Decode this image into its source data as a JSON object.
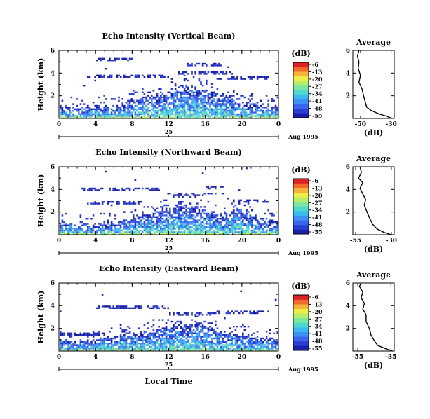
{
  "figure": {
    "x_axis_title": "Local Time",
    "date_label": "Aug 1995",
    "day_label": "25",
    "colorbar_unit": "(dB)",
    "avg_title": "Average",
    "avg_xlabel": "(dB)"
  },
  "colormap": [
    "#1a1fa8",
    "#2a3ed6",
    "#3a66ee",
    "#3f90f4",
    "#3bb8ee",
    "#4fd8d0",
    "#7be6a0",
    "#b6ee6a",
    "#ecec4a",
    "#f6b23a",
    "#f26a2a",
    "#dc2222"
  ],
  "chart_data": [
    {
      "type": "heatmap",
      "title": "Echo Intensity (Vertical Beam)",
      "xlabel": "Local Time",
      "ylabel": "Height (km)",
      "x_range": [
        0,
        24
      ],
      "x_ticks": [
        "0",
        "4",
        "8",
        "12",
        "16",
        "20",
        "0"
      ],
      "y_range": [
        0,
        6
      ],
      "y_ticks": [
        "2",
        "4",
        "6"
      ],
      "colorbar": {
        "label": "(dB)",
        "ticks": [
          "-6",
          "-13",
          "-20",
          "-27",
          "-34",
          "-41",
          "-48",
          "-55"
        ]
      },
      "top_profile": [
        {
          "t": 0,
          "h": 1.2
        },
        {
          "t": 2,
          "h": 1.0
        },
        {
          "t": 4,
          "h": 1.2
        },
        {
          "t": 6,
          "h": 1.3
        },
        {
          "t": 8,
          "h": 1.6
        },
        {
          "t": 10,
          "h": 2.1
        },
        {
          "t": 12,
          "h": 2.5
        },
        {
          "t": 13,
          "h": 2.9
        },
        {
          "t": 14,
          "h": 3.0
        },
        {
          "t": 15,
          "h": 2.8
        },
        {
          "t": 16,
          "h": 2.6
        },
        {
          "t": 17,
          "h": 2.4
        },
        {
          "t": 18,
          "h": 2.1
        },
        {
          "t": 19,
          "h": 1.9
        },
        {
          "t": 20,
          "h": 1.6
        },
        {
          "t": 21,
          "h": 1.5
        },
        {
          "t": 22,
          "h": 1.4
        },
        {
          "t": 24,
          "h": 1.3
        }
      ],
      "bands": [
        {
          "t0": 3,
          "t1": 12,
          "h": 3.8
        },
        {
          "t0": 13,
          "t1": 19,
          "h": 4.1
        },
        {
          "t0": 14,
          "t1": 18,
          "h": 4.8
        },
        {
          "t0": 17,
          "t1": 23,
          "h": 3.6
        },
        {
          "t0": 4,
          "t1": 8,
          "h": 5.3
        }
      ],
      "average": {
        "title": "Average",
        "xlabel": "(dB)",
        "x_range": [
          -55,
          -28
        ],
        "x_ticks": [
          "-50",
          "-30"
        ],
        "x_tick_values": [
          -50,
          -30
        ],
        "y_range": [
          0,
          6
        ],
        "y_ticks": [
          "2",
          "4",
          "6"
        ],
        "points": [
          {
            "db": -29.5,
            "h": 0.0
          },
          {
            "db": -33,
            "h": 0.2
          },
          {
            "db": -38,
            "h": 0.4
          },
          {
            "db": -43,
            "h": 0.7
          },
          {
            "db": -46,
            "h": 1.0
          },
          {
            "db": -47,
            "h": 1.5
          },
          {
            "db": -48,
            "h": 2.0
          },
          {
            "db": -49,
            "h": 2.6
          },
          {
            "db": -51,
            "h": 3.2
          },
          {
            "db": -50,
            "h": 3.8
          },
          {
            "db": -51.5,
            "h": 4.4
          },
          {
            "db": -51,
            "h": 5.0
          },
          {
            "db": -52,
            "h": 5.5
          },
          {
            "db": -51,
            "h": 6.0
          }
        ]
      }
    },
    {
      "type": "heatmap",
      "title": "Echo Intensity (Northward Beam)",
      "xlabel": "Local Time",
      "ylabel": "Height (km)",
      "x_range": [
        0,
        24
      ],
      "x_ticks": [
        "0",
        "4",
        "8",
        "12",
        "16",
        "20",
        "0"
      ],
      "y_range": [
        0,
        6
      ],
      "y_ticks": [
        "2",
        "4",
        "6"
      ],
      "colorbar": {
        "label": "(dB)",
        "ticks": [
          "-6",
          "-13",
          "-20",
          "-27",
          "-34",
          "-41",
          "-48",
          "-55"
        ]
      },
      "top_profile": [
        {
          "t": 0,
          "h": 1.1
        },
        {
          "t": 2,
          "h": 1.0
        },
        {
          "t": 4,
          "h": 1.1
        },
        {
          "t": 6,
          "h": 1.2
        },
        {
          "t": 8,
          "h": 1.5
        },
        {
          "t": 10,
          "h": 2.0
        },
        {
          "t": 12,
          "h": 2.5
        },
        {
          "t": 13,
          "h": 2.8
        },
        {
          "t": 14,
          "h": 2.6
        },
        {
          "t": 15,
          "h": 2.5
        },
        {
          "t": 16,
          "h": 2.3
        },
        {
          "t": 17,
          "h": 2.0
        },
        {
          "t": 18,
          "h": 1.8
        },
        {
          "t": 19,
          "h": 2.2
        },
        {
          "t": 20,
          "h": 2.6
        },
        {
          "t": 21,
          "h": 1.8
        },
        {
          "t": 22,
          "h": 1.5
        },
        {
          "t": 24,
          "h": 1.3
        }
      ],
      "bands": [
        {
          "t0": 2,
          "t1": 11,
          "h": 4.1
        },
        {
          "t0": 12,
          "t1": 18,
          "h": 3.6
        },
        {
          "t0": 16,
          "t1": 18,
          "h": 4.2
        },
        {
          "t0": 3,
          "t1": 9,
          "h": 2.9
        },
        {
          "t0": 19,
          "t1": 23,
          "h": 3.0
        }
      ],
      "average": {
        "title": "Average",
        "xlabel": "(dB)",
        "x_range": [
          -57,
          -28
        ],
        "x_ticks": [
          "-55",
          "-30"
        ],
        "x_tick_values": [
          -55,
          -30
        ],
        "y_range": [
          0,
          6
        ],
        "y_ticks": [
          "2",
          "4",
          "6"
        ],
        "points": [
          {
            "db": -30,
            "h": 0.0
          },
          {
            "db": -35,
            "h": 0.2
          },
          {
            "db": -40,
            "h": 0.5
          },
          {
            "db": -43,
            "h": 0.9
          },
          {
            "db": -45,
            "h": 1.4
          },
          {
            "db": -47,
            "h": 2.0
          },
          {
            "db": -49,
            "h": 2.6
          },
          {
            "db": -48,
            "h": 3.1
          },
          {
            "db": -50,
            "h": 3.6
          },
          {
            "db": -52,
            "h": 4.1
          },
          {
            "db": -50,
            "h": 4.6
          },
          {
            "db": -53,
            "h": 5.0
          },
          {
            "db": -51,
            "h": 5.5
          },
          {
            "db": -52,
            "h": 6.0
          }
        ]
      }
    },
    {
      "type": "heatmap",
      "title": "Echo Intensity (Eastward Beam)",
      "xlabel": "Local Time",
      "ylabel": "Height (km)",
      "x_range": [
        0,
        24
      ],
      "x_ticks": [
        "0",
        "4",
        "8",
        "12",
        "16",
        "20",
        "0"
      ],
      "y_range": [
        0,
        6
      ],
      "y_ticks": [
        "2",
        "4",
        "6"
      ],
      "colorbar": {
        "label": "(dB)",
        "ticks": [
          "-6",
          "-13",
          "-20",
          "-27",
          "-34",
          "-41",
          "-48",
          "-55"
        ]
      },
      "top_profile": [
        {
          "t": 0,
          "h": 1.0
        },
        {
          "t": 2,
          "h": 1.0
        },
        {
          "t": 4,
          "h": 1.1
        },
        {
          "t": 6,
          "h": 1.3
        },
        {
          "t": 8,
          "h": 1.6
        },
        {
          "t": 10,
          "h": 1.9
        },
        {
          "t": 12,
          "h": 2.3
        },
        {
          "t": 13,
          "h": 2.6
        },
        {
          "t": 14,
          "h": 2.4
        },
        {
          "t": 15,
          "h": 2.5
        },
        {
          "t": 16,
          "h": 2.3
        },
        {
          "t": 17,
          "h": 2.0
        },
        {
          "t": 18,
          "h": 1.8
        },
        {
          "t": 19,
          "h": 1.7
        },
        {
          "t": 20,
          "h": 1.5
        },
        {
          "t": 21,
          "h": 1.4
        },
        {
          "t": 22,
          "h": 1.3
        },
        {
          "t": 24,
          "h": 1.2
        }
      ],
      "bands": [
        {
          "t0": 4,
          "t1": 12,
          "h": 3.9
        },
        {
          "t0": 17,
          "t1": 23,
          "h": 3.5
        },
        {
          "t0": 0,
          "t1": 5,
          "h": 1.6
        },
        {
          "t0": 12,
          "t1": 17,
          "h": 3.3
        }
      ],
      "average": {
        "title": "Average",
        "xlabel": "(dB)",
        "x_range": [
          -58,
          -33
        ],
        "x_ticks": [
          "-55",
          "-35"
        ],
        "x_tick_values": [
          -55,
          -35
        ],
        "y_range": [
          0,
          6
        ],
        "y_ticks": [
          "2",
          "4",
          "6"
        ],
        "points": [
          {
            "db": -34,
            "h": 0.0
          },
          {
            "db": -38,
            "h": 0.2
          },
          {
            "db": -43,
            "h": 0.5
          },
          {
            "db": -45,
            "h": 0.9
          },
          {
            "db": -47,
            "h": 1.4
          },
          {
            "db": -48,
            "h": 2.0
          },
          {
            "db": -50,
            "h": 2.6
          },
          {
            "db": -50,
            "h": 3.2
          },
          {
            "db": -52,
            "h": 3.7
          },
          {
            "db": -51,
            "h": 4.2
          },
          {
            "db": -53,
            "h": 4.7
          },
          {
            "db": -52,
            "h": 5.2
          },
          {
            "db": -54,
            "h": 5.7
          },
          {
            "db": -53,
            "h": 6.0
          }
        ]
      }
    }
  ]
}
